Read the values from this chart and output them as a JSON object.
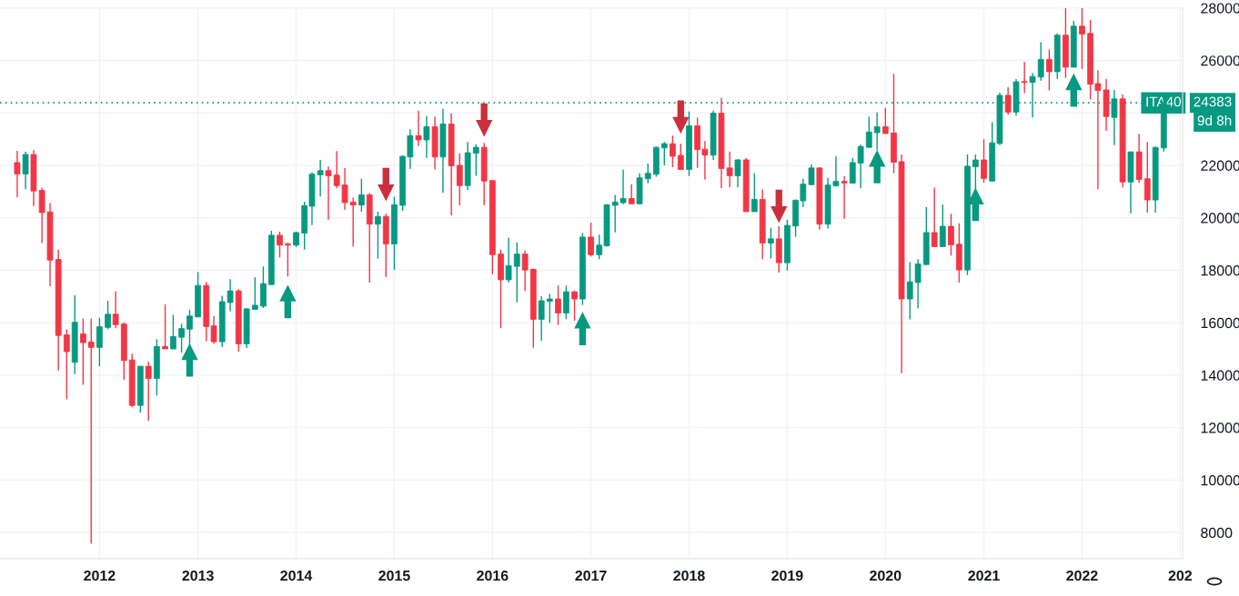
{
  "chart_data": {
    "type": "candlestick",
    "x": [
      "2011-03",
      "2011-04",
      "2011-05",
      "2011-06",
      "2011-07",
      "2011-08",
      "2011-09",
      "2011-10",
      "2011-11",
      "2011-12",
      "2012-01",
      "2012-02",
      "2012-03",
      "2012-04",
      "2012-05",
      "2012-06",
      "2012-07",
      "2012-08",
      "2012-09",
      "2012-10",
      "2012-11",
      "2012-12",
      "2013-01",
      "2013-02",
      "2013-03",
      "2013-04",
      "2013-05",
      "2013-06",
      "2013-07",
      "2013-08",
      "2013-09",
      "2013-10",
      "2013-11",
      "2013-12",
      "2014-01",
      "2014-02",
      "2014-03",
      "2014-04",
      "2014-05",
      "2014-06",
      "2014-07",
      "2014-08",
      "2014-09",
      "2014-10",
      "2014-11",
      "2014-12",
      "2015-01",
      "2015-02",
      "2015-03",
      "2015-04",
      "2015-05",
      "2015-06",
      "2015-07",
      "2015-08",
      "2015-09",
      "2015-10",
      "2015-11",
      "2015-12",
      "2016-01",
      "2016-02",
      "2016-03",
      "2016-04",
      "2016-05",
      "2016-06",
      "2016-07",
      "2016-08",
      "2016-09",
      "2016-10",
      "2016-11",
      "2016-12",
      "2017-01",
      "2017-02",
      "2017-03",
      "2017-04",
      "2017-05",
      "2017-06",
      "2017-07",
      "2017-08",
      "2017-09",
      "2017-10",
      "2017-11",
      "2017-12",
      "2018-01",
      "2018-02",
      "2018-03",
      "2018-04",
      "2018-05",
      "2018-06",
      "2018-07",
      "2018-08",
      "2018-09",
      "2018-10",
      "2018-11",
      "2018-12",
      "2019-01",
      "2019-02",
      "2019-03",
      "2019-04",
      "2019-05",
      "2019-06",
      "2019-07",
      "2019-08",
      "2019-09",
      "2019-10",
      "2019-11",
      "2019-12",
      "2020-01",
      "2020-02",
      "2020-03",
      "2020-04",
      "2020-05",
      "2020-06",
      "2020-07",
      "2020-08",
      "2020-09",
      "2020-10",
      "2020-11",
      "2020-12",
      "2021-01",
      "2021-02",
      "2021-03",
      "2021-04",
      "2021-05",
      "2021-06",
      "2021-07",
      "2021-08",
      "2021-09",
      "2021-10",
      "2021-11",
      "2021-12",
      "2022-01",
      "2022-02",
      "2022-03",
      "2022-04",
      "2022-05",
      "2022-06",
      "2022-07",
      "2022-08",
      "2022-09",
      "2022-10",
      "2022-11"
    ],
    "ohlc": [
      [
        22105,
        22550,
        20782,
        21672
      ],
      [
        21672,
        22516,
        21090,
        22413
      ],
      [
        22413,
        22584,
        20440,
        21022
      ],
      [
        21045,
        21147,
        19038,
        20201
      ],
      [
        20224,
        20566,
        17396,
        18388
      ],
      [
        18411,
        18787,
        14180,
        15514
      ],
      [
        15537,
        15742,
        13085,
        14898
      ],
      [
        14488,
        17042,
        14043,
        16016
      ],
      [
        15571,
        16164,
        13633,
        15241
      ],
      [
        15263,
        16164,
        7578,
        15058
      ],
      [
        15058,
        16187,
        14340,
        15845
      ],
      [
        15822,
        16837,
        15750,
        16324
      ],
      [
        16324,
        17191,
        15788,
        15925
      ],
      [
        15948,
        16016,
        13827,
        14556
      ],
      [
        14579,
        14819,
        12778,
        12846
      ],
      [
        12846,
        14340,
        12572,
        14340
      ],
      [
        14340,
        14511,
        12264,
        13872
      ],
      [
        13872,
        15366,
        13222,
        15092
      ],
      [
        15092,
        16700,
        15001,
        15001
      ],
      [
        15001,
        16301,
        15001,
        15469
      ],
      [
        15446,
        15959,
        14853,
        15777
      ],
      [
        15754,
        16495,
        15081,
        16255
      ],
      [
        16221,
        17932,
        16221,
        17419
      ],
      [
        17419,
        17555,
        15298,
        15856
      ],
      [
        15879,
        16255,
        15195,
        15275
      ],
      [
        15275,
        17031,
        15070,
        16803
      ],
      [
        16769,
        17658,
        16427,
        17213
      ],
      [
        17213,
        17282,
        14898,
        15195
      ],
      [
        15195,
        16563,
        15035,
        16529
      ],
      [
        16506,
        17726,
        16506,
        16666
      ],
      [
        16632,
        18148,
        16563,
        17487
      ],
      [
        17453,
        19505,
        17453,
        19334
      ],
      [
        19334,
        19471,
        18490,
        18958
      ],
      [
        19004,
        19049,
        17761,
        18958
      ],
      [
        18958,
        19471,
        18878,
        19437
      ],
      [
        19414,
        20611,
        18787,
        20463
      ],
      [
        20440,
        21729,
        19722,
        21660
      ],
      [
        21637,
        22207,
        20816,
        21797
      ],
      [
        21797,
        21956,
        19927,
        21603
      ],
      [
        21626,
        22549,
        21124,
        21227
      ],
      [
        21250,
        21899,
        20303,
        20577
      ],
      [
        20600,
        20771,
        18900,
        20486
      ],
      [
        20486,
        21489,
        20235,
        20873
      ],
      [
        20873,
        20942,
        17532,
        19756
      ],
      [
        19756,
        20235,
        18444,
        20052
      ],
      [
        20052,
        20155,
        17737,
        19003
      ],
      [
        19003,
        20805,
        18011,
        20497
      ],
      [
        20474,
        22378,
        20269,
        22344
      ],
      [
        22321,
        23370,
        21865,
        23131
      ],
      [
        23131,
        24089,
        22732,
        22971
      ],
      [
        22971,
        23884,
        22287,
        23473
      ],
      [
        23473,
        23849,
        21842,
        22321
      ],
      [
        22321,
        24157,
        20953,
        23576
      ],
      [
        23576,
        23986,
        20098,
        21979
      ],
      [
        22002,
        22458,
        20474,
        21227
      ],
      [
        21227,
        22891,
        21067,
        22481
      ],
      [
        22458,
        22800,
        21603,
        22686
      ],
      [
        22686,
        22857,
        20474,
        21398
      ],
      [
        21421,
        21421,
        17840,
        18593
      ],
      [
        18615,
        18786,
        15788,
        17635
      ],
      [
        17635,
        19242,
        17532,
        18171
      ],
      [
        18148,
        19060,
        16780,
        18615
      ],
      [
        18615,
        18752,
        17213,
        18011
      ],
      [
        18034,
        18068,
        15046,
        16130
      ],
      [
        16130,
        17008,
        15308,
        16837
      ],
      [
        16814,
        17099,
        15993,
        16905
      ],
      [
        16905,
        17418,
        15913,
        16369
      ],
      [
        16369,
        17418,
        16130,
        17179
      ],
      [
        17179,
        17213,
        16073,
        16905
      ],
      [
        16905,
        19425,
        16677,
        19265
      ],
      [
        19265,
        19813,
        18524,
        18593
      ],
      [
        18593,
        19356,
        18421,
        18957
      ],
      [
        18935,
        20520,
        18900,
        20497
      ],
      [
        20475,
        20874,
        19449,
        20600
      ],
      [
        20577,
        21832,
        20520,
        20737
      ],
      [
        20737,
        21284,
        20532,
        20532
      ],
      [
        20532,
        21695,
        20532,
        21524
      ],
      [
        21490,
        22071,
        21319,
        21695
      ],
      [
        21661,
        22721,
        21570,
        22687
      ],
      [
        22664,
        22892,
        22003,
        22824
      ],
      [
        22824,
        23132,
        21934,
        22345
      ],
      [
        22379,
        22824,
        21843,
        21843
      ],
      [
        21843,
        24055,
        21592,
        23508
      ],
      [
        23508,
        23816,
        21900,
        22596
      ],
      [
        22618,
        22926,
        21455,
        22390
      ],
      [
        22390,
        24090,
        22208,
        23987
      ],
      [
        23987,
        24568,
        21125,
        21877
      ],
      [
        21900,
        22527,
        21159,
        21604
      ],
      [
        21604,
        22242,
        21159,
        22208
      ],
      [
        22208,
        22277,
        20235,
        20235
      ],
      [
        20235,
        21695,
        20235,
        20703
      ],
      [
        20703,
        21079,
        18422,
        19038
      ],
      [
        19038,
        19608,
        18445,
        19198
      ],
      [
        19198,
        19677,
        17909,
        18286
      ],
      [
        18286,
        19927,
        17989,
        19711
      ],
      [
        19688,
        20703,
        19278,
        20669
      ],
      [
        20646,
        21490,
        20406,
        21284
      ],
      [
        21262,
        22037,
        21262,
        21900
      ],
      [
        21900,
        21934,
        19551,
        19757
      ],
      [
        19757,
        21524,
        19585,
        21250
      ],
      [
        21216,
        22345,
        21216,
        21387
      ],
      [
        21387,
        21592,
        19962,
        21330
      ],
      [
        21318,
        22277,
        21318,
        22105
      ],
      [
        22082,
        22790,
        21125,
        22721
      ],
      [
        22687,
        23850,
        22687,
        23269
      ],
      [
        23246,
        24021,
        22584,
        23474
      ],
      [
        23474,
        24192,
        23212,
        23212
      ],
      [
        23234,
        25492,
        21706,
        22117
      ],
      [
        22140,
        22413,
        14078,
        16906
      ],
      [
        16906,
        18308,
        16130,
        17556
      ],
      [
        17533,
        18422,
        16541,
        18240
      ],
      [
        18217,
        20406,
        18217,
        19437
      ],
      [
        19437,
        21147,
        18901,
        18901
      ],
      [
        18901,
        20497,
        18901,
        19676
      ],
      [
        19676,
        20155,
        18559,
        18969
      ],
      [
        18992,
        19790,
        17532,
        18011
      ],
      [
        18011,
        22413,
        17817,
        21968
      ],
      [
        21945,
        22413,
        21090,
        22207
      ],
      [
        22207,
        22994,
        21329,
        21500
      ],
      [
        21398,
        23644,
        21398,
        22857
      ],
      [
        22835,
        24773,
        22766,
        24670
      ],
      [
        24670,
        24978,
        23929,
        24032
      ],
      [
        24032,
        25286,
        23895,
        25184
      ],
      [
        25195,
        25936,
        24750,
        25161
      ],
      [
        25161,
        25526,
        23827,
        25389
      ],
      [
        25366,
        26689,
        25229,
        26039
      ],
      [
        26039,
        26415,
        24853,
        25571
      ],
      [
        25571,
        27031,
        25298,
        26963
      ],
      [
        26963,
        27989,
        25332,
        25742
      ],
      [
        25742,
        27510,
        25742,
        27305
      ],
      [
        27305,
        28000,
        25674,
        27008
      ],
      [
        27031,
        27544,
        24511,
        25092
      ],
      [
        25115,
        25628,
        21090,
        24853
      ],
      [
        24876,
        25286,
        23314,
        23861
      ],
      [
        23827,
        24876,
        22766,
        24534
      ],
      [
        24534,
        24705,
        21159,
        21364
      ],
      [
        21364,
        22515,
        20166,
        22515
      ],
      [
        22515,
        23200,
        21329,
        21466
      ],
      [
        21489,
        22892,
        20200,
        20680
      ],
      [
        20680,
        22721,
        20200,
        22686
      ],
      [
        22664,
        24753,
        22527,
        24383
      ]
    ],
    "colors": [
      "#f23645",
      "#089981",
      "#f23645",
      "#f23645",
      "#f23645",
      "#f23645",
      "#f23645",
      "#089981",
      "#f23645",
      "#f23645",
      "#089981",
      "#089981",
      "#f23645",
      "#f23645",
      "#f23645",
      "#089981",
      "#f23645",
      "#089981",
      "#f23645",
      "#089981",
      "#089981",
      "#089981",
      "#089981",
      "#f23645",
      "#f23645",
      "#089981",
      "#089981",
      "#f23645",
      "#089981",
      "#089981",
      "#089981",
      "#089981",
      "#f23645",
      "#f23645",
      "#089981",
      "#089981",
      "#089981",
      "#089981",
      "#f23645",
      "#f23645",
      "#f23645",
      "#f23645",
      "#089981",
      "#f23645",
      "#089981",
      "#f23645",
      "#089981",
      "#089981",
      "#089981",
      "#f23645",
      "#089981",
      "#f23645",
      "#089981",
      "#f23645",
      "#f23645",
      "#089981",
      "#089981",
      "#f23645",
      "#f23645",
      "#f23645",
      "#089981",
      "#089981",
      "#f23645",
      "#f23645",
      "#089981",
      "#089981",
      "#f23645",
      "#089981",
      "#f23645",
      "#089981",
      "#f23645",
      "#089981",
      "#089981",
      "#089981",
      "#089981",
      "#f23645",
      "#089981",
      "#089981",
      "#089981",
      "#089981",
      "#f23645",
      "#f23645",
      "#089981",
      "#f23645",
      "#f23645",
      "#089981",
      "#f23645",
      "#f23645",
      "#089981",
      "#f23645",
      "#089981",
      "#f23645",
      "#089981",
      "#f23645",
      "#089981",
      "#089981",
      "#089981",
      "#089981",
      "#f23645",
      "#089981",
      "#089981",
      "#f23645",
      "#089981",
      "#089981",
      "#089981",
      "#089981",
      "#f23645",
      "#f23645",
      "#f23645",
      "#089981",
      "#089981",
      "#089981",
      "#f23645",
      "#089981",
      "#f23645",
      "#f23645",
      "#089981",
      "#089981",
      "#f23645",
      "#089981",
      "#089981",
      "#f23645",
      "#089981",
      "#f23645",
      "#089981",
      "#089981",
      "#f23645",
      "#089981",
      "#f23645",
      "#089981",
      "#f23645",
      "#f23645",
      "#f23645",
      "#f23645",
      "#089981",
      "#f23645",
      "#089981",
      "#f23645",
      "#f23645",
      "#089981",
      "#089981"
    ],
    "series": [
      {
        "type": "scatter",
        "marker": "triangle",
        "color": "#089981",
        "x": [
          "2012-12",
          "2013-12",
          "2016-12",
          "2019-12",
          "2020-12",
          "2021-12"
        ],
        "values": [
          14580,
          16810,
          15780,
          21950,
          20510,
          24870
        ]
      },
      {
        "type": "scatter",
        "color": "#cc2f3c",
        "x": [
          "2014-12",
          "2015-12",
          "2017-12",
          "2018-12"
        ],
        "values": [
          21270,
          23730,
          23840,
          20440
        ]
      }
    ],
    "ref_lines": [
      {
        "axis": "y",
        "value": 24383,
        "label": "ITA40",
        "color": "#089981",
        "line_style": "dotted"
      }
    ],
    "annotations": [
      "24383",
      "9d 8h"
    ],
    "xlim": [
      "2010-12-27",
      "2023-01-10"
    ],
    "xticks": [
      {
        "value": "2012-01",
        "label": "2012"
      },
      {
        "value": "2013-01",
        "label": "2013"
      },
      {
        "value": "2014-01",
        "label": "2014"
      },
      {
        "value": "2015-01",
        "label": "2015"
      },
      {
        "value": "2016-01",
        "label": "2016"
      },
      {
        "value": "2017-01",
        "label": "2017"
      },
      {
        "value": "2018-01",
        "label": "2018"
      },
      {
        "value": "2019-01",
        "label": "2019"
      },
      {
        "value": "2020-01",
        "label": "2020"
      },
      {
        "value": "2021-01",
        "label": "2021"
      },
      {
        "value": "2022-01",
        "label": "2022"
      },
      {
        "value": "2023-01",
        "label": "202"
      }
    ],
    "ylim": [
      7000,
      28020
    ],
    "yticks": [
      8000,
      10000,
      12000,
      14000,
      16000,
      18000,
      20000,
      22000,
      {
        "value": 24000,
        "label": null
      },
      26000,
      28000
    ],
    "grid": true
  }
}
